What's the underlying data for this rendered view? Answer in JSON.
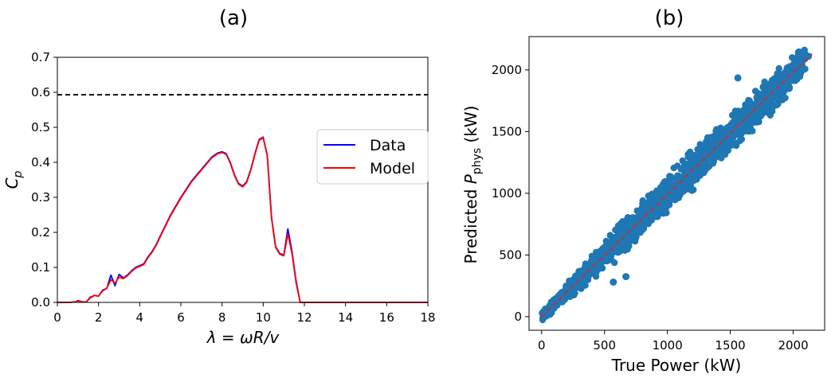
{
  "chart_data": [
    {
      "type": "line",
      "title": "(a)",
      "xlabel": "λ = ωR/v",
      "ylabel": "C_p",
      "xlim": [
        0,
        18
      ],
      "ylim": [
        0,
        0.7
      ],
      "xticks": [
        0,
        2,
        4,
        6,
        8,
        10,
        12,
        14,
        16,
        18
      ],
      "yticks": [
        0.0,
        0.1,
        0.2,
        0.3,
        0.4,
        0.5,
        0.6,
        0.7
      ],
      "xtick_labels": [
        "0",
        "2",
        "4",
        "6",
        "8",
        "10",
        "12",
        "14",
        "16",
        "18"
      ],
      "ytick_labels": [
        "0.0",
        "0.1",
        "0.2",
        "0.3",
        "0.4",
        "0.5",
        "0.6",
        "0.7"
      ],
      "reference_line": {
        "y": 0.593,
        "style": "dashed",
        "color": "#000000"
      },
      "legend": {
        "position": "right",
        "entries": [
          "Data",
          "Model"
        ]
      },
      "series": [
        {
          "name": "Data",
          "color": "#0000ff",
          "x": [
            0,
            0.3,
            0.6,
            0.9,
            1.0,
            1.2,
            1.4,
            1.6,
            1.8,
            2.0,
            2.2,
            2.4,
            2.6,
            2.8,
            3.0,
            3.2,
            3.4,
            3.6,
            3.8,
            4.0,
            4.2,
            4.4,
            4.6,
            4.8,
            5.0,
            5.5,
            6.0,
            6.5,
            7.0,
            7.5,
            7.8,
            8.0,
            8.2,
            8.4,
            8.6,
            8.8,
            9.0,
            9.2,
            9.4,
            9.6,
            9.8,
            10.0,
            10.2,
            10.4,
            10.6,
            10.8,
            11.0,
            11.2,
            11.4,
            11.6,
            11.8,
            12.0,
            13.0,
            14.0,
            15.0,
            16.0,
            17.0,
            18.0
          ],
          "y": [
            0,
            0,
            0,
            0.002,
            0.005,
            0.002,
            0.001,
            0.015,
            0.02,
            0.018,
            0.035,
            0.04,
            0.078,
            0.048,
            0.08,
            0.07,
            0.078,
            0.09,
            0.1,
            0.105,
            0.11,
            0.13,
            0.145,
            0.165,
            0.19,
            0.25,
            0.3,
            0.345,
            0.38,
            0.415,
            0.427,
            0.43,
            0.425,
            0.4,
            0.365,
            0.34,
            0.332,
            0.345,
            0.38,
            0.425,
            0.465,
            0.472,
            0.42,
            0.245,
            0.16,
            0.14,
            0.135,
            0.21,
            0.145,
            0.06,
            0.0,
            0.0,
            0.0,
            0.0,
            0.0,
            0.0,
            0.0,
            0.0
          ]
        },
        {
          "name": "Model",
          "color": "#ff0000",
          "x": [
            0,
            0.3,
            0.6,
            0.9,
            1.0,
            1.2,
            1.4,
            1.6,
            1.8,
            2.0,
            2.2,
            2.4,
            2.6,
            2.8,
            3.0,
            3.2,
            3.4,
            3.6,
            3.8,
            4.0,
            4.2,
            4.4,
            4.6,
            4.8,
            5.0,
            5.5,
            6.0,
            6.5,
            7.0,
            7.5,
            7.8,
            8.0,
            8.2,
            8.4,
            8.6,
            8.8,
            9.0,
            9.2,
            9.4,
            9.6,
            9.8,
            10.0,
            10.2,
            10.4,
            10.6,
            10.8,
            11.0,
            11.2,
            11.4,
            11.6,
            11.8,
            12.0,
            13.0,
            14.0,
            15.0,
            16.0,
            17.0,
            18.0
          ],
          "y": [
            0,
            0,
            0,
            0.002,
            0.004,
            0.002,
            0.001,
            0.013,
            0.02,
            0.018,
            0.033,
            0.04,
            0.065,
            0.055,
            0.072,
            0.068,
            0.076,
            0.088,
            0.098,
            0.103,
            0.108,
            0.128,
            0.143,
            0.163,
            0.188,
            0.248,
            0.298,
            0.343,
            0.378,
            0.413,
            0.425,
            0.428,
            0.423,
            0.398,
            0.363,
            0.338,
            0.33,
            0.343,
            0.378,
            0.423,
            0.463,
            0.47,
            0.418,
            0.243,
            0.158,
            0.138,
            0.133,
            0.195,
            0.14,
            0.055,
            0.0,
            0.0,
            0.0,
            0.0,
            0.0,
            0.0,
            0.0,
            0.0
          ]
        }
      ]
    },
    {
      "type": "scatter",
      "title": "(b)",
      "xlabel": "True Power (kW)",
      "ylabel": "Predicted P_phys (kW)",
      "xlim": [
        -100,
        2250
      ],
      "ylim": [
        -110,
        2270
      ],
      "xticks": [
        0,
        500,
        1000,
        1500,
        2000
      ],
      "yticks": [
        0,
        500,
        1000,
        1500,
        2000
      ],
      "xtick_labels": [
        "0",
        "500",
        "1000",
        "1500",
        "2000"
      ],
      "ytick_labels": [
        "0",
        "500",
        "1000",
        "1500",
        "2000"
      ],
      "point_color": "#1f77b4",
      "reference_line": {
        "from": [
          0,
          0
        ],
        "to": [
          2150,
          2130
        ],
        "style": "dashed",
        "color": "#d62728"
      },
      "scatter_band": {
        "x_range": [
          0,
          2100
        ],
        "spread_kw": 80,
        "outliers": [
          [
            570,
            280
          ],
          [
            670,
            325
          ],
          [
            1560,
            1935
          ],
          [
            2080,
            2130
          ],
          [
            2120,
            2110
          ]
        ]
      }
    }
  ]
}
